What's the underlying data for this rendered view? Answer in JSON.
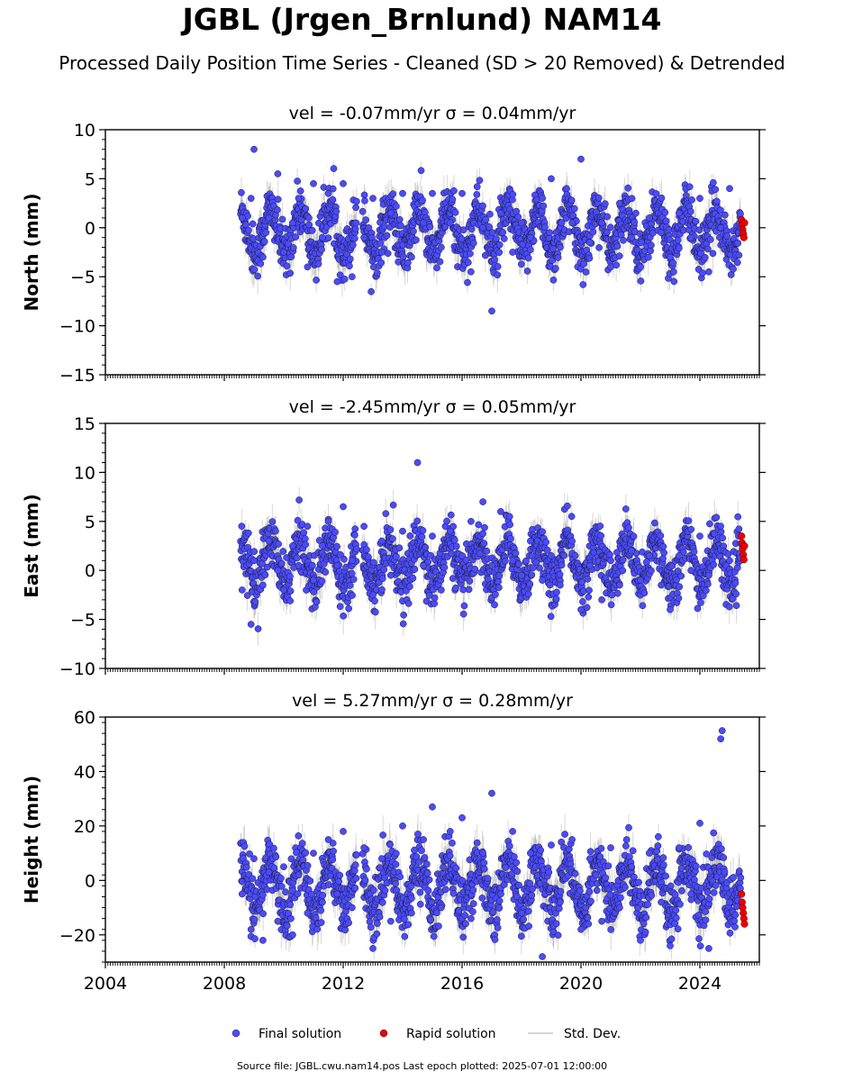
{
  "figure": {
    "title": "JGBL (Jrgen_Brnlund) NAM14",
    "subtitle": "Processed Daily Position Time Series - Cleaned (SD > 20 Removed) & Detrended",
    "footer": "Source file: JGBL.cwu.nam14.pos  Last epoch plotted: 2025-07-01 12:00:00"
  },
  "legend": {
    "placement": "bottom-center",
    "items": [
      {
        "label": "Final solution",
        "marker": "dot",
        "color": "#4b4bff"
      },
      {
        "label": "Rapid solution",
        "marker": "dot",
        "color": "#ee0000"
      },
      {
        "label": "Std. Dev.",
        "marker": "line",
        "color": "#c8c8c8"
      }
    ]
  },
  "colors": {
    "final": "#4b4bff",
    "final_edge": "#1a1a2e",
    "rapid": "#ee0000",
    "stddev": "#8c8c8c"
  },
  "chart_data": [
    {
      "type": "scatter",
      "panel": "north",
      "title": "vel = -0.07mm/yr   σ = 0.04mm/yr",
      "ylabel": "North (mm)",
      "xlim": [
        2004,
        2026
      ],
      "ylim": [
        -15,
        10
      ],
      "yticks": [
        -15,
        -10,
        -5,
        0,
        5,
        10
      ],
      "ytick_labels": [
        "−15",
        "−10",
        "−5",
        "0",
        "5",
        "10"
      ],
      "grid": false,
      "series": [
        {
          "name": "Final solution",
          "role": "final",
          "x": [
            2008.6,
            2008.9,
            2009.0,
            2009.3,
            2009.5,
            2009.8,
            2010.0,
            2010.3,
            2010.5,
            2010.8,
            2011.0,
            2011.3,
            2011.5,
            2011.8,
            2012.0,
            2012.3,
            2012.7,
            2013.0,
            2013.3,
            2013.6,
            2014.0,
            2014.3,
            2014.7,
            2015.0,
            2015.3,
            2015.6,
            2016.0,
            2016.3,
            2016.7,
            2017.0,
            2017.3,
            2017.7,
            2018.0,
            2018.3,
            2018.7,
            2019.0,
            2019.3,
            2019.7,
            2020.0,
            2020.3,
            2020.7,
            2021.0,
            2021.3,
            2021.7,
            2022.0,
            2022.3,
            2022.7,
            2023.0,
            2023.3,
            2023.7,
            2024.0,
            2024.3,
            2024.7,
            2025.0,
            2025.3
          ],
          "y": [
            1.0,
            3.0,
            8.0,
            -3.0,
            1.0,
            5.5,
            -2.5,
            0.5,
            3.0,
            -4.0,
            4.5,
            -1.0,
            3.5,
            -5.5,
            4.5,
            -5.0,
            -1.0,
            3.0,
            -2.5,
            1.5,
            3.5,
            -3.0,
            0.5,
            3.5,
            -2.0,
            0.5,
            3.5,
            -4.5,
            0.0,
            -8.5,
            1.5,
            -2.5,
            0.5,
            -1.0,
            3.0,
            5.0,
            -2.0,
            0.5,
            7.0,
            -1.5,
            0.5,
            -4.0,
            2.5,
            -1.0,
            -4.0,
            1.0,
            -0.5,
            -3.0,
            1.5,
            -1.0,
            3.0,
            -4.5,
            0.0,
            4.0,
            -0.5
          ]
        },
        {
          "name": "Rapid solution",
          "role": "rapid",
          "x": [
            2025.4,
            2025.42,
            2025.44,
            2025.46,
            2025.48,
            2025.5
          ],
          "y": [
            0.8,
            0.3,
            -0.2,
            -0.6,
            -1.0,
            0.5
          ]
        }
      ]
    },
    {
      "type": "scatter",
      "panel": "east",
      "title": "vel = -2.45mm/yr   σ = 0.05mm/yr",
      "ylabel": "East (mm)",
      "xlim": [
        2004,
        2026
      ],
      "ylim": [
        -10,
        15
      ],
      "yticks": [
        -10,
        -5,
        0,
        5,
        10,
        15
      ],
      "ytick_labels": [
        "−10",
        "−5",
        "0",
        "5",
        "10",
        "15"
      ],
      "grid": false,
      "series": [
        {
          "name": "Final solution",
          "role": "final",
          "x": [
            2008.6,
            2008.9,
            2009.0,
            2009.3,
            2009.5,
            2009.8,
            2010.0,
            2010.3,
            2010.5,
            2010.8,
            2011.0,
            2011.3,
            2011.5,
            2011.8,
            2012.0,
            2012.3,
            2012.7,
            2013.0,
            2013.3,
            2013.6,
            2014.0,
            2014.5,
            2014.7,
            2015.0,
            2015.3,
            2015.6,
            2016.0,
            2016.3,
            2016.7,
            2017.0,
            2017.3,
            2017.7,
            2018.0,
            2018.3,
            2018.7,
            2019.0,
            2019.3,
            2019.7,
            2020.0,
            2020.3,
            2020.7,
            2021.0,
            2021.3,
            2021.7,
            2022.0,
            2022.3,
            2022.7,
            2023.0,
            2023.3,
            2023.7,
            2024.0,
            2024.3,
            2024.7,
            2025.0,
            2025.3
          ],
          "y": [
            -2.0,
            -5.5,
            1.0,
            -1.5,
            3.0,
            0.0,
            -2.0,
            2.5,
            0.5,
            4.5,
            -1.0,
            2.5,
            5.0,
            0.5,
            6.5,
            1.0,
            4.5,
            -2.5,
            3.0,
            -0.5,
            4.0,
            11.0,
            0.5,
            3.5,
            -2.0,
            4.0,
            1.5,
            5.0,
            7.0,
            0.5,
            6.0,
            1.0,
            -0.5,
            3.0,
            -1.0,
            1.5,
            -1.5,
            3.0,
            -4.0,
            0.5,
            -3.0,
            1.0,
            -1.5,
            2.0,
            -1.0,
            1.5,
            -1.5,
            -4.0,
            1.5,
            0.0,
            3.5,
            -0.5,
            4.5,
            1.0,
            3.5
          ]
        },
        {
          "name": "Rapid solution",
          "role": "rapid",
          "x": [
            2025.4,
            2025.42,
            2025.44,
            2025.46,
            2025.48,
            2025.5
          ],
          "y": [
            3.5,
            2.8,
            2.2,
            1.6,
            1.1,
            2.5
          ]
        }
      ]
    },
    {
      "type": "scatter",
      "panel": "height",
      "title": "vel = 5.27mm/yr   σ = 0.28mm/yr",
      "ylabel": "Height (mm)",
      "xlim": [
        2004,
        2026
      ],
      "ylim": [
        -30,
        60
      ],
      "yticks": [
        -20,
        0,
        20,
        40,
        60
      ],
      "ytick_labels": [
        "−20",
        "0",
        "20",
        "40",
        "60"
      ],
      "xticks": [
        2004,
        2008,
        2012,
        2016,
        2020,
        2024
      ],
      "xtick_labels": [
        "2004",
        "2008",
        "2012",
        "2016",
        "2020",
        "2024"
      ],
      "grid": false,
      "series": [
        {
          "name": "Final solution",
          "role": "final",
          "x": [
            2008.6,
            2008.9,
            2009.0,
            2009.3,
            2009.5,
            2009.8,
            2010.0,
            2010.3,
            2010.5,
            2010.8,
            2011.0,
            2011.3,
            2011.5,
            2011.8,
            2012.0,
            2012.3,
            2012.7,
            2013.0,
            2013.3,
            2013.6,
            2014.0,
            2014.3,
            2014.7,
            2015.0,
            2015.3,
            2015.6,
            2016.0,
            2016.3,
            2016.7,
            2017.0,
            2017.3,
            2017.7,
            2018.0,
            2018.3,
            2018.7,
            2019.0,
            2019.3,
            2019.7,
            2020.0,
            2020.3,
            2020.7,
            2021.0,
            2021.3,
            2021.7,
            2022.0,
            2022.3,
            2022.7,
            2023.0,
            2023.3,
            2023.7,
            2024.0,
            2024.3,
            2024.7,
            2024.75,
            2025.0
          ],
          "y": [
            -5.0,
            -18.0,
            8.0,
            -22.0,
            3.0,
            -15.0,
            5.0,
            -20.0,
            2.0,
            -12.0,
            10.0,
            -8.0,
            15.0,
            -5.0,
            18.0,
            -10.0,
            12.0,
            -25.0,
            8.0,
            -15.0,
            20.0,
            -12.0,
            15.0,
            27.0,
            -10.0,
            18.0,
            23.0,
            -14.0,
            10.0,
            32.0,
            -5.0,
            18.0,
            -12.0,
            10.0,
            -28.0,
            13.0,
            -8.0,
            15.0,
            -18.0,
            8.0,
            -15.0,
            12.0,
            -10.0,
            5.0,
            -22.0,
            10.0,
            -8.0,
            -24.0,
            12.0,
            -5.0,
            21.0,
            -25.0,
            52.0,
            55.0,
            -8.0
          ]
        },
        {
          "name": "Rapid solution",
          "role": "rapid",
          "x": [
            2025.4,
            2025.42,
            2025.44,
            2025.46,
            2025.48,
            2025.5
          ],
          "y": [
            -5.0,
            -8.0,
            -10.0,
            -12.0,
            -14.0,
            -16.0
          ]
        }
      ]
    }
  ]
}
